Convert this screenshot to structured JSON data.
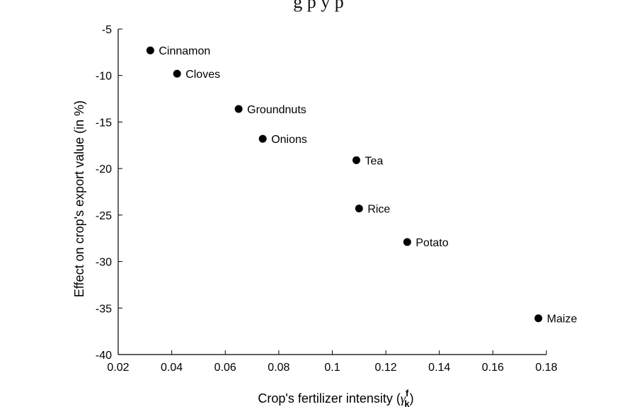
{
  "top_caption": "g                                    p        y        p",
  "chart_data": {
    "type": "scatter",
    "xlabel": "Crop's fertilizer intensity (",
    "xlabel_symbol": "γ",
    "xlabel_sup": "f",
    "xlabel_sub": "k",
    "xlabel_close": ")",
    "ylabel": "Effect on crop's export value (in %)",
    "xlim": [
      0.02,
      0.18
    ],
    "ylim": [
      -40,
      -5
    ],
    "xticks": [
      0.02,
      0.04,
      0.06,
      0.08,
      0.1,
      0.12,
      0.14,
      0.16,
      0.18
    ],
    "xtick_labels": [
      "0.02",
      "0.04",
      "0.06",
      "0.08",
      "0.1",
      "0.12",
      "0.14",
      "0.16",
      "0.18"
    ],
    "yticks": [
      -5,
      -10,
      -15,
      -20,
      -25,
      -30,
      -35,
      -40
    ],
    "ytick_labels": [
      "-5",
      "-10",
      "-15",
      "-20",
      "-25",
      "-30",
      "-35",
      "-40"
    ],
    "grid": false,
    "points": [
      {
        "label": "Cinnamon",
        "x": 0.032,
        "y": -7.3
      },
      {
        "label": "Cloves",
        "x": 0.042,
        "y": -9.8
      },
      {
        "label": "Groundnuts",
        "x": 0.065,
        "y": -13.6
      },
      {
        "label": "Onions",
        "x": 0.074,
        "y": -16.8
      },
      {
        "label": "Tea",
        "x": 0.109,
        "y": -19.1
      },
      {
        "label": "Rice",
        "x": 0.11,
        "y": -24.3
      },
      {
        "label": "Potato",
        "x": 0.128,
        "y": -27.9
      },
      {
        "label": "Maize",
        "x": 0.177,
        "y": -36.1
      }
    ]
  }
}
